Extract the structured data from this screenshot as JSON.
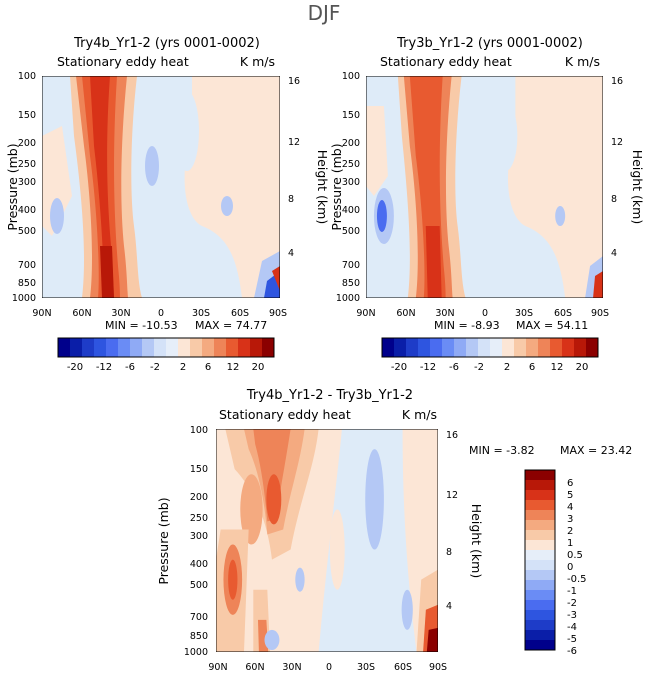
{
  "figure": {
    "suptitle": "DJF"
  },
  "chart_data": [
    {
      "type": "heatmap",
      "title": "Try4b_Yr1-2 (yrs 0001-0002)",
      "subtitle_left": "Stationary eddy heat",
      "subtitle_right": "K m/s",
      "xlabel": "",
      "ylabel": "Pressure (mb)",
      "ylabel_right": "Height (km)",
      "x_ticks": [
        "90N",
        "60N",
        "30N",
        "0",
        "30S",
        "60S",
        "90S"
      ],
      "y_ticks": [
        "100",
        "150",
        "200",
        "250",
        "300",
        "400",
        "500",
        "700",
        "850",
        "1000"
      ],
      "y_ticks_right": [
        "16",
        "12",
        "8",
        "4"
      ],
      "min_label": "MIN = -10.53",
      "max_label": "MAX = 74.77",
      "min": -10.53,
      "max": 74.77,
      "colorbar_ticks": [
        "-20",
        "-12",
        "-6",
        "-2",
        "2",
        "6",
        "12",
        "20"
      ]
    },
    {
      "type": "heatmap",
      "title": "Try3b_Yr1-2 (yrs 0001-0002)",
      "subtitle_left": "Stationary eddy heat",
      "subtitle_right": "K m/s",
      "xlabel": "",
      "ylabel": "Pressure (mb)",
      "ylabel_right": "Height (km)",
      "x_ticks": [
        "90N",
        "60N",
        "30N",
        "0",
        "30S",
        "60S",
        "90S"
      ],
      "y_ticks": [
        "100",
        "150",
        "200",
        "250",
        "300",
        "400",
        "500",
        "700",
        "850",
        "1000"
      ],
      "y_ticks_right": [
        "16",
        "12",
        "8",
        "4"
      ],
      "min_label": "MIN = -8.93",
      "max_label": "MAX = 54.11",
      "min": -8.93,
      "max": 54.11,
      "colorbar_ticks": [
        "-20",
        "-12",
        "-6",
        "-2",
        "2",
        "6",
        "12",
        "20"
      ]
    },
    {
      "type": "heatmap",
      "title": "Try4b_Yr1-2 - Try3b_Yr1-2",
      "subtitle_left": "Stationary eddy heat",
      "subtitle_right": "K m/s",
      "xlabel": "",
      "ylabel": "Pressure (mb)",
      "ylabel_right": "Height (km)",
      "x_ticks": [
        "90N",
        "60N",
        "30N",
        "0",
        "30S",
        "60S",
        "90S"
      ],
      "y_ticks": [
        "100",
        "150",
        "200",
        "250",
        "300",
        "400",
        "500",
        "700",
        "850",
        "1000"
      ],
      "y_ticks_right": [
        "16",
        "12",
        "8",
        "4"
      ],
      "min_label": "MIN = -3.82",
      "max_label": "MAX = 23.42",
      "min": -3.82,
      "max": 23.42,
      "colorbar_ticks": [
        "6",
        "5",
        "4",
        "3",
        "2",
        "1",
        "0.5",
        "0",
        "-0.5",
        "-1",
        "-2",
        "-3",
        "-4",
        "-5",
        "-6"
      ]
    }
  ],
  "colors": {
    "blues_dark_to_light": [
      "#00008b",
      "#0a1ea8",
      "#1e3cc8",
      "#2e55e0",
      "#4a6cf0",
      "#6a8cf5",
      "#8faaf5",
      "#b4c8f5",
      "#d4e2f8",
      "#e6eef9"
    ],
    "reds_light_to_dark": [
      "#fce6d6",
      "#f8caa8",
      "#f4aa80",
      "#ee8458",
      "#e85a30",
      "#d83218",
      "#b81808",
      "#8b0000"
    ]
  }
}
